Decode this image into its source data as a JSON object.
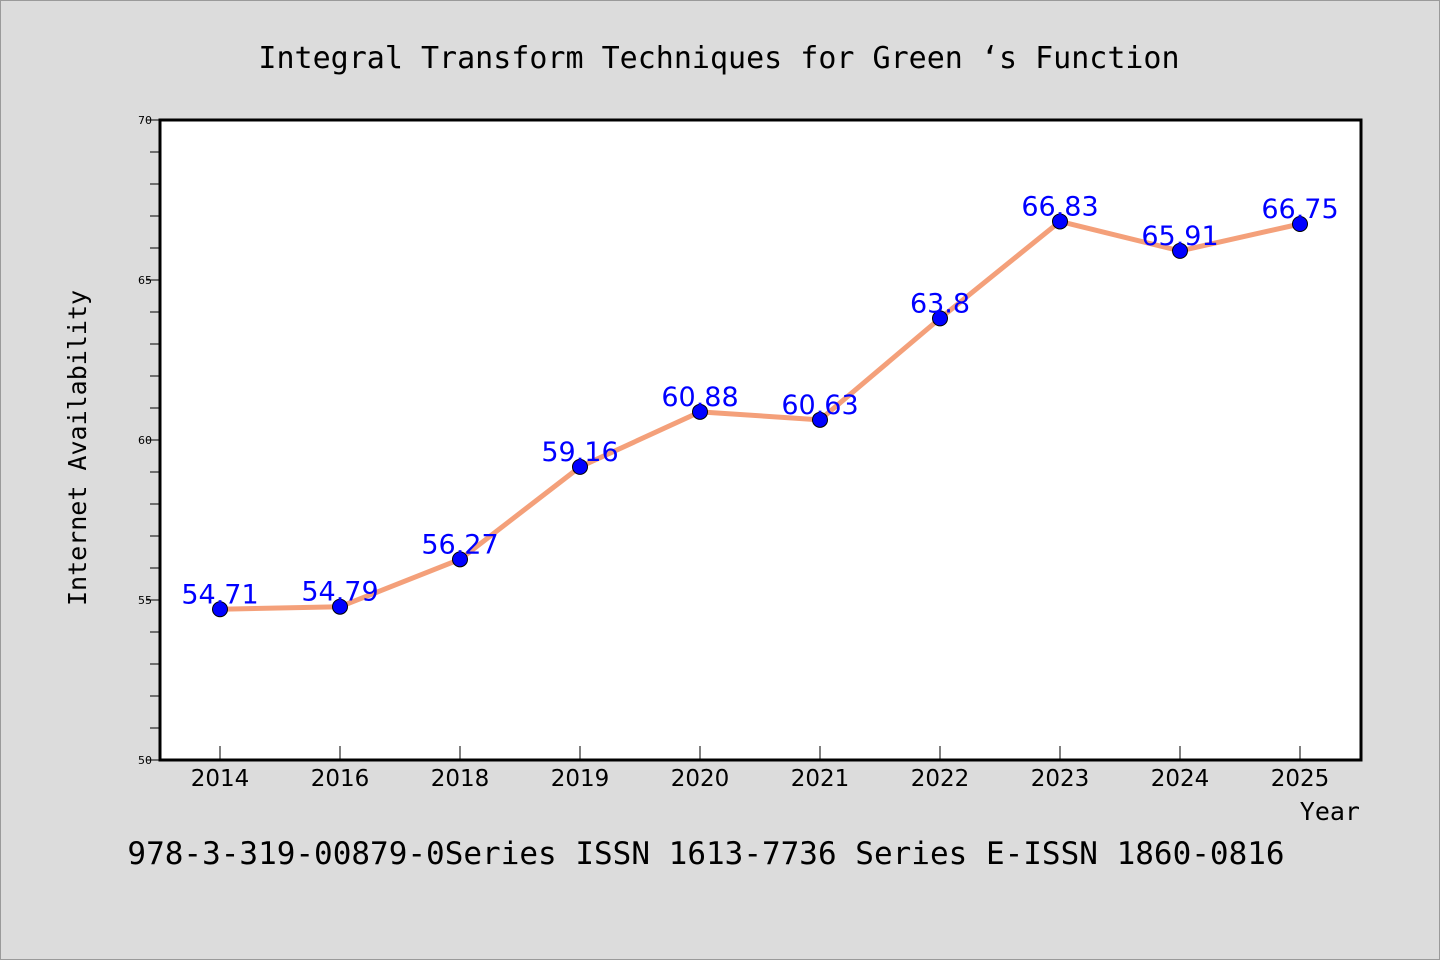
{
  "colors": {
    "background": "#dcdcdc",
    "plot_background": "#ffffff",
    "line": "#f4a07a",
    "marker": "#0000ff",
    "data_label": "#0000ff",
    "text": "#000000"
  },
  "footer_text": "978-3-319-00879-0Series ISSN 1613-7736 Series E-ISSN 1860-0816",
  "chart_data": {
    "type": "line",
    "title": "Integral Transform Techniques for Green ‘s Function",
    "xlabel": "Year",
    "ylabel": "Internet Availability",
    "categories": [
      "2014",
      "2016",
      "2018",
      "2019",
      "2020",
      "2021",
      "2022",
      "2023",
      "2024",
      "2025"
    ],
    "series": [
      {
        "values": [
          54.71,
          54.79,
          56.27,
          59.16,
          60.88,
          60.63,
          63.8,
          66.83,
          65.91,
          66.75
        ],
        "data_labels": [
          "54.71",
          "54.79",
          "56.27",
          "59.16",
          "60.88",
          "60.63",
          "63.8",
          "66.83",
          "65.91",
          "66.75"
        ]
      }
    ],
    "ylim": [
      50,
      70
    ],
    "yticks": [
      "50",
      "55",
      "60",
      "65",
      "70"
    ],
    "y_minor_step": 1,
    "grid": false,
    "legend": "none"
  }
}
